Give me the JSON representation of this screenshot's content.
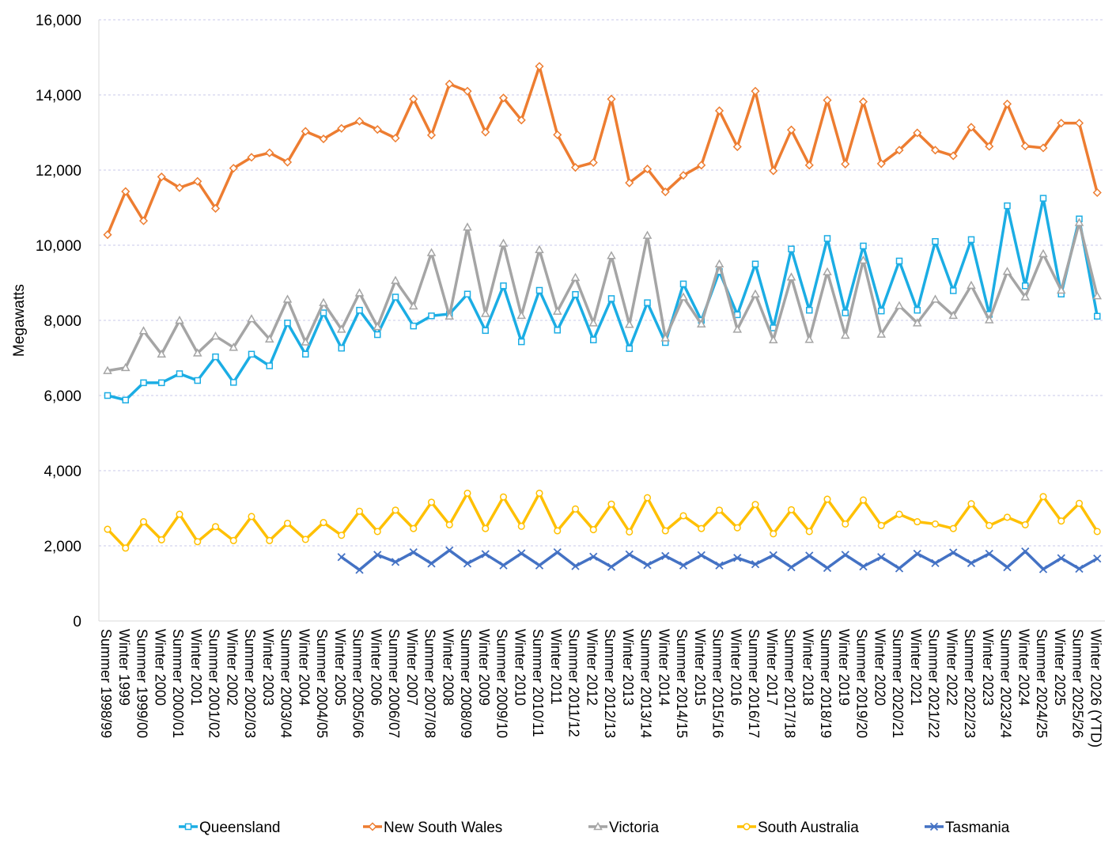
{
  "chart_data": {
    "type": "line",
    "title": "",
    "xlabel": "",
    "ylabel": "Megawatts",
    "ylim": [
      0,
      16000
    ],
    "yticks": [
      0,
      2000,
      4000,
      6000,
      8000,
      10000,
      12000,
      14000,
      16000
    ],
    "ytick_labels": [
      "0",
      "2,000",
      "4,000",
      "6,000",
      "8,000",
      "10,000",
      "12,000",
      "14,000",
      "16,000"
    ],
    "grid": "horizontal dashed",
    "legend_position": "bottom",
    "categories": [
      "Summer 1998/99",
      "Winter 1999",
      "Summer 1999/00",
      "Winter 2000",
      "Summer 2000/01",
      "Winter 2001",
      "Summer 2001/02",
      "Winter 2002",
      "Summer 2002/03",
      "Winter 2003",
      "Summer 2003/04",
      "Winter 2004",
      "Summer 2004/05",
      "Winter 2005",
      "Summer 2005/06",
      "Winter 2006",
      "Summer 2006/07",
      "Winter 2007",
      "Summer 2007/08",
      "Winter 2008",
      "Summer 2008/09",
      "Winter 2009",
      "Summer 2009/10",
      "Winter 2010",
      "Summer 2010/11",
      "Winter 2011",
      "Summer 2011/12",
      "Winter 2012",
      "Summer 2012/13",
      "Winter 2013",
      "Summer 2013/14",
      "Winter 2014",
      "Summer 2014/15",
      "Winter 2015",
      "Summer 2015/16",
      "Winter 2016",
      "Summer 2016/17",
      "Winter 2017",
      "Summer 2017/18",
      "Winter 2018",
      "Summer 2018/19",
      "Winter 2019",
      "Summer 2019/20",
      "Winter 2020",
      "Summer 2020/21",
      "Winter 2021",
      "Summer 2021/22",
      "Winter 2022",
      "Summer 2022/23",
      "Winter 2023",
      "Summer 2023/24",
      "Winter 2024",
      "Summer 2024/25",
      "Winter 2025",
      "Summer 2025/26",
      "Winter 2026 (YTD)"
    ],
    "series": [
      {
        "name": "Queensland",
        "color": "#1BADE4",
        "marker": "square",
        "values": [
          6000,
          5880,
          6340,
          6340,
          6580,
          6400,
          7030,
          6350,
          7100,
          6790,
          7930,
          7100,
          8200,
          7260,
          8270,
          7620,
          8620,
          7850,
          8120,
          8170,
          8700,
          7730,
          8920,
          7430,
          8800,
          7740,
          8690,
          7480,
          8580,
          7250,
          8470,
          7410,
          8970,
          8000,
          9300,
          8150,
          9500,
          7800,
          9900,
          8270,
          10180,
          8200,
          9980,
          8250,
          9580,
          8270,
          10100,
          8790,
          10150,
          8160,
          11050,
          8920,
          11250,
          8700,
          10700,
          8110
        ]
      },
      {
        "name": "New South Wales",
        "color": "#ED7D31",
        "marker": "diamond",
        "values": [
          10280,
          11430,
          10650,
          11820,
          11530,
          11700,
          10980,
          12050,
          12340,
          12460,
          12210,
          13030,
          12830,
          13110,
          13300,
          13080,
          12850,
          13890,
          12930,
          14290,
          14100,
          13010,
          13920,
          13330,
          14760,
          12940,
          12070,
          12200,
          13890,
          11660,
          12030,
          11420,
          11860,
          12130,
          13580,
          12620,
          14100,
          11980,
          13070,
          12130,
          13860,
          12160,
          13820,
          12170,
          12530,
          12990,
          12530,
          12380,
          13140,
          12630,
          13760,
          12640,
          12590,
          13250,
          13250,
          11400
        ]
      },
      {
        "name": "Victoria",
        "color": "#A5A5A5",
        "marker": "triangle",
        "values": [
          6660,
          6740,
          7720,
          7100,
          8000,
          7130,
          7580,
          7280,
          8040,
          7500,
          8560,
          7420,
          8470,
          7760,
          8730,
          7830,
          9060,
          8380,
          9800,
          8110,
          10480,
          8180,
          10050,
          8130,
          9880,
          8240,
          9140,
          7930,
          9720,
          7890,
          10260,
          7530,
          8620,
          7900,
          9500,
          7760,
          8700,
          7480,
          9150,
          7490,
          9290,
          7600,
          9600,
          7630,
          8390,
          7930,
          8560,
          8130,
          8930,
          8010,
          9300,
          8620,
          9770,
          8800,
          10600,
          8650
        ]
      },
      {
        "name": "South Australia",
        "color": "#FFC000",
        "marker": "circle",
        "values": [
          2440,
          1940,
          2640,
          2160,
          2840,
          2110,
          2510,
          2140,
          2780,
          2140,
          2600,
          2170,
          2620,
          2280,
          2920,
          2380,
          2950,
          2460,
          3160,
          2560,
          3400,
          2460,
          3300,
          2520,
          3400,
          2400,
          2980,
          2430,
          3110,
          2370,
          3280,
          2400,
          2800,
          2460,
          2950,
          2480,
          3100,
          2320,
          2960,
          2380,
          3240,
          2580,
          3220,
          2540,
          2840,
          2640,
          2580,
          2460,
          3120,
          2540,
          2760,
          2560,
          3310,
          2660,
          3130,
          2380
        ]
      },
      {
        "name": "Tasmania",
        "color": "#4472C4",
        "marker": "x",
        "values": [
          null,
          null,
          null,
          null,
          null,
          null,
          null,
          null,
          null,
          null,
          null,
          null,
          null,
          1700,
          1360,
          1760,
          1570,
          1830,
          1530,
          1880,
          1530,
          1780,
          1480,
          1800,
          1480,
          1830,
          1460,
          1710,
          1440,
          1770,
          1490,
          1730,
          1480,
          1750,
          1480,
          1680,
          1510,
          1750,
          1430,
          1740,
          1410,
          1760,
          1450,
          1700,
          1400,
          1790,
          1540,
          1820,
          1540,
          1790,
          1430,
          1850,
          1380,
          1670,
          1390,
          1660
        ]
      }
    ]
  }
}
